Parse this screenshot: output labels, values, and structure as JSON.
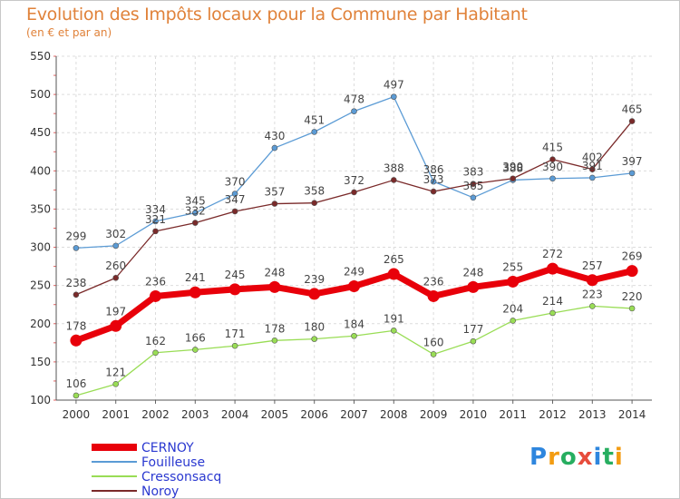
{
  "header": {
    "title": "Evolution des Impôts locaux pour la Commune par Habitant",
    "subtitle": "(en € et par an)"
  },
  "logo": {
    "text": "Proxiti",
    "colors": [
      "#2e86de",
      "#f39c12",
      "#27ae60",
      "#e74c3c",
      "#2e86de",
      "#27ae60",
      "#f39c12"
    ]
  },
  "chart_data": {
    "type": "line",
    "categories": [
      "2000",
      "2001",
      "2002",
      "2003",
      "2004",
      "2005",
      "2006",
      "2007",
      "2008",
      "2009",
      "2010",
      "2011",
      "2012",
      "2013",
      "2014"
    ],
    "ylim": [
      100,
      550
    ],
    "yticks": [
      100,
      150,
      200,
      250,
      300,
      350,
      400,
      450,
      500,
      550
    ],
    "grid": true,
    "legend_position": "bottom-left",
    "series": [
      {
        "name": "CERNOY",
        "color": "#e8000a",
        "values": [
          178,
          197,
          236,
          241,
          245,
          248,
          239,
          249,
          265,
          236,
          248,
          255,
          272,
          257,
          269
        ]
      },
      {
        "name": "Fouilleuse",
        "color": "#5b9bd5",
        "values": [
          299,
          302,
          334,
          345,
          370,
          430,
          451,
          478,
          497,
          386,
          365,
          388,
          390,
          391,
          397
        ]
      },
      {
        "name": "Cressonsacq",
        "color": "#99dd55",
        "values": [
          106,
          121,
          162,
          166,
          171,
          178,
          180,
          184,
          191,
          160,
          177,
          204,
          214,
          223,
          220
        ]
      },
      {
        "name": "Noroy",
        "color": "#7a2a2a",
        "values": [
          238,
          260,
          321,
          332,
          347,
          357,
          358,
          372,
          388,
          373,
          383,
          390,
          415,
          402,
          465
        ]
      }
    ]
  }
}
